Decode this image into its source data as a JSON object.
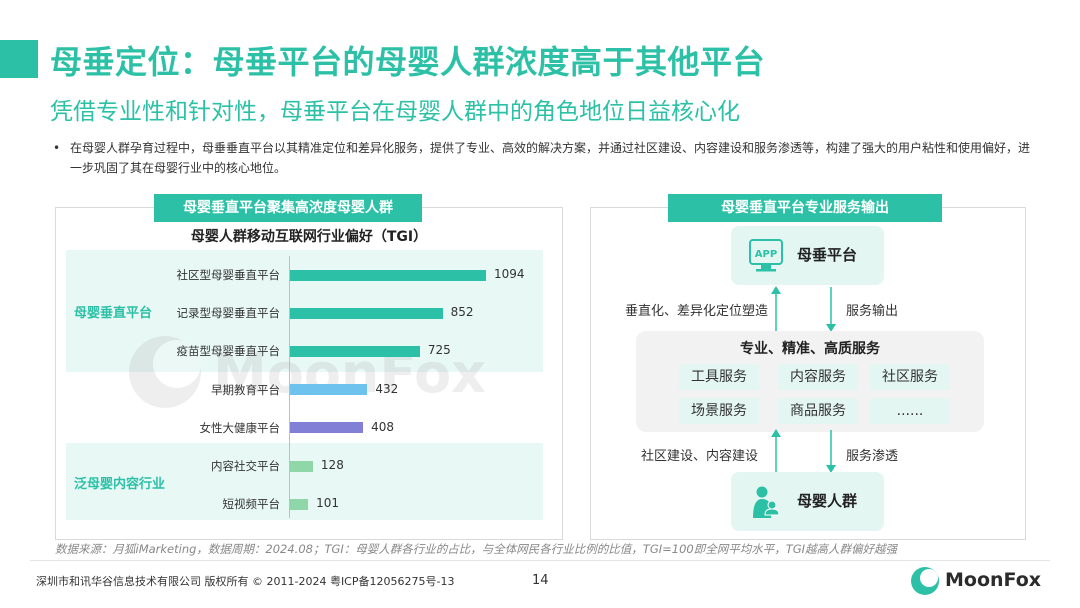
{
  "header": {
    "title": "母垂定位：母垂平台的母婴人群浓度高于其他平台",
    "subtitle": "凭借专业性和针对性，母垂平台在母婴人群中的角色地位日益核心化"
  },
  "bullet": "在母婴人群孕育过程中，母垂垂直平台以其精准定位和差异化服务，提供了专业、高效的解决方案，并通过社区建设、内容建设和服务渗透等，构建了强大的用户粘性和使用偏好，进一步巩固了其在母婴行业中的核心地位。",
  "left_panel": {
    "tag": "母婴垂直平台聚集高浓度母婴人群",
    "group1_label": "母婴垂直平台",
    "group2_label": "泛母婴内容行业",
    "watermark": "MoonFox"
  },
  "chart_data": {
    "type": "bar",
    "orientation": "horizontal",
    "title": "母婴人群移动互联网行业偏好（TGI）",
    "categories": [
      "社区型母婴垂直平台",
      "记录型母婴垂直平台",
      "疫苗型母婴垂直平台",
      "早期教育平台",
      "女性大健康平台",
      "内容社交平台",
      "短视频平台"
    ],
    "values": [
      1094,
      852,
      725,
      432,
      408,
      128,
      101
    ],
    "colors": [
      "#2cc1a6",
      "#2cc1a6",
      "#2cc1a6",
      "#6ec3ee",
      "#8180d6",
      "#8fd6a8",
      "#8fd6a8"
    ],
    "xlim": [
      0,
      1200
    ],
    "grid": false,
    "legend": "none"
  },
  "right_panel": {
    "tag": "母婴垂直平台专业服务输出",
    "top_node": "母垂平台",
    "top_icon": "app-icon",
    "mid_title": "专业、精准、高质服务",
    "services": [
      "工具服务",
      "内容服务",
      "社区服务",
      "场景服务",
      "商品服务",
      "......"
    ],
    "bottom_node": "母婴人群",
    "bottom_icon": "mother-baby-icon",
    "arrow_upper_left": "垂直化、差异化定位塑造",
    "arrow_upper_right": "服务输出",
    "arrow_lower_left": "社区建设、内容建设",
    "arrow_lower_right": "服务渗透"
  },
  "footer": {
    "source": "数据来源：月狐iMarketing，数据周期：2024.08；TGI：母婴人群各行业的占比，与全体网民各行业比例的比值，TGI=100即全网平均水平，TGI越高人群偏好越强",
    "copyright": "深圳市和讯华谷信息技术有限公司 版权所有 © 2011-2024 粤ICP备12056275号-13",
    "page": "14",
    "logo": "MoonFox"
  },
  "colors": {
    "accent": "#2cc1a6",
    "light_accent": "#e3f6f2",
    "group_bg": "#e8f8f5"
  }
}
